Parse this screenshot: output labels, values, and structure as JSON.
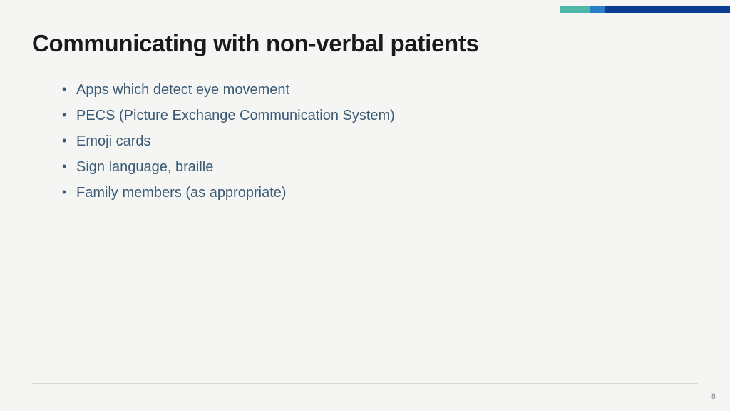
{
  "slide": {
    "title": "Communicating with non-verbal patients",
    "bullets": [
      "Apps which detect eye movement",
      "PECS (Picture Exchange Communication System)",
      "Emoji cards",
      "Sign language, braille",
      "Family members (as appropriate)"
    ],
    "page_number": "8"
  },
  "styling": {
    "background_color": "#f5f6f4",
    "title_color": "#1a1a1a",
    "title_fontsize": 33,
    "title_weight": "bold",
    "bullet_color": "#3a5a75",
    "bullet_fontsize": 20,
    "accent_colors": [
      "#4db8a8",
      "#2a7fc9",
      "#0a3d91"
    ],
    "accent_widths": [
      42,
      22,
      175
    ],
    "accent_height": 10,
    "footer_line_color": "#d8d8d6",
    "page_number_color": "#888888",
    "page_number_fontsize": 11
  }
}
